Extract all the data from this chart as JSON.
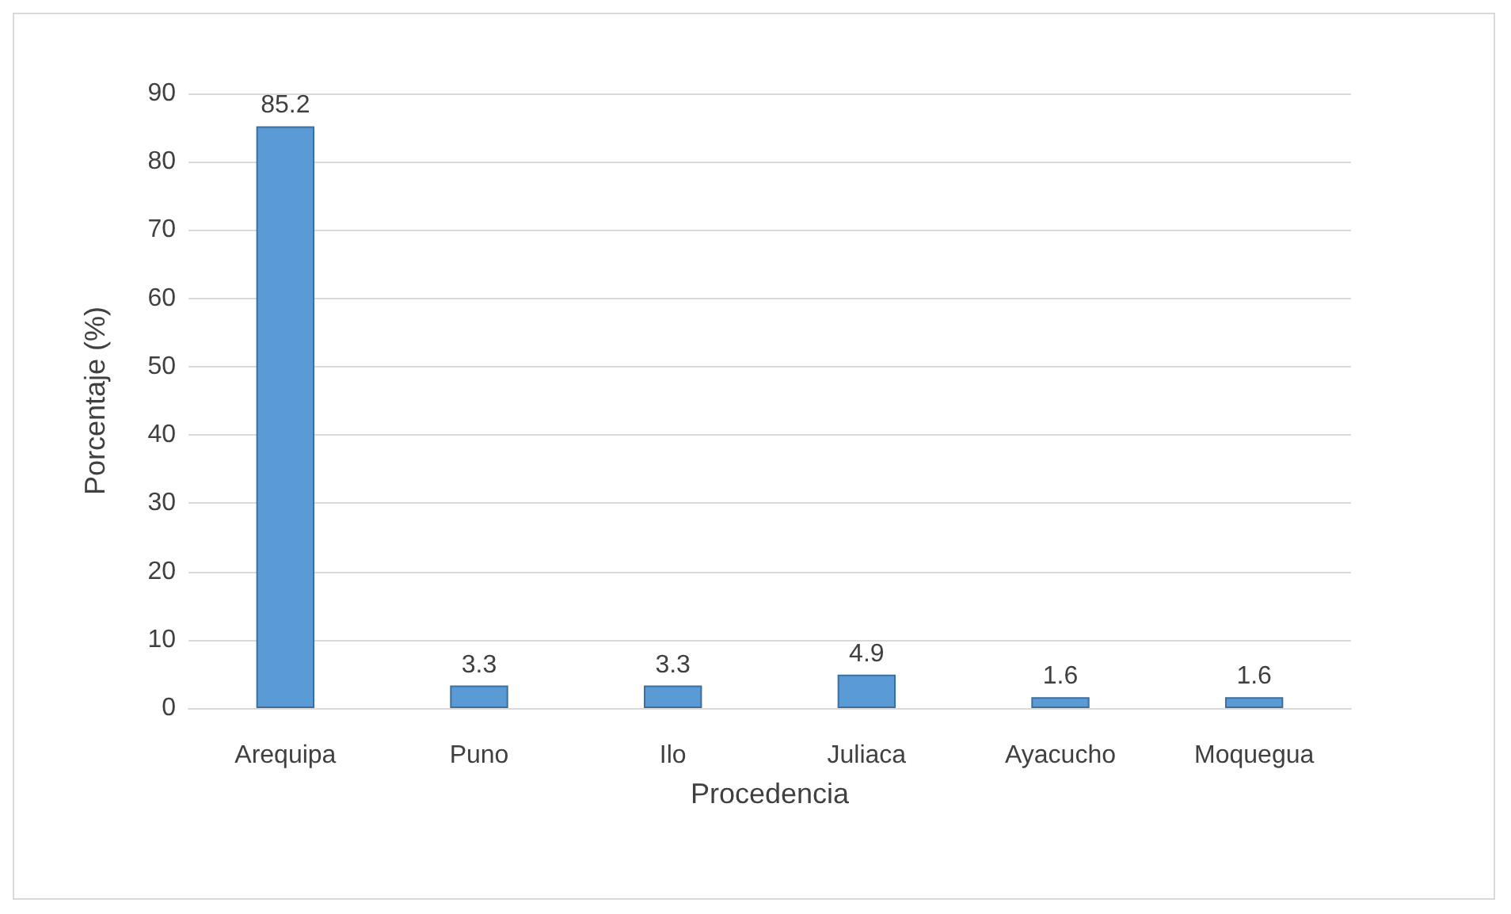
{
  "chart_data": {
    "type": "bar",
    "xlabel": "Procedencia",
    "ylabel": "Porcentaje (%)",
    "categories": [
      "Arequipa",
      "Puno",
      "Ilo",
      "Juliaca",
      "Ayacucho",
      "Moquegua"
    ],
    "values": [
      85.2,
      3.3,
      3.3,
      4.9,
      1.6,
      1.6
    ],
    "color": "#5b9bd5",
    "ylim": [
      0,
      90
    ],
    "yticks": [
      0,
      10,
      20,
      30,
      40,
      50,
      60,
      70,
      80,
      90
    ],
    "grid": true,
    "data_labels": true
  }
}
